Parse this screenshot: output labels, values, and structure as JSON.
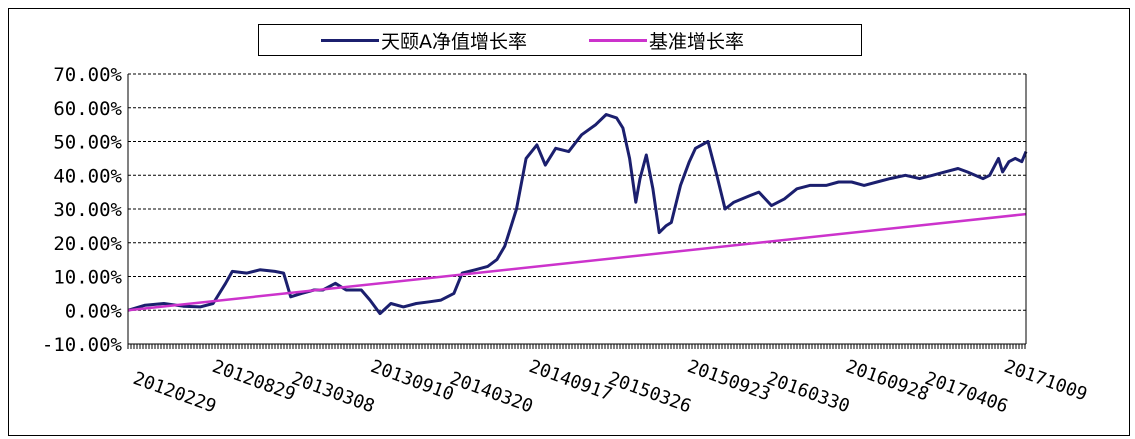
{
  "chart_data": {
    "type": "line",
    "title": "",
    "xlabel": "",
    "ylabel": "",
    "ylim": [
      -0.1,
      0.7
    ],
    "yticks": [
      -0.1,
      0.0,
      0.1,
      0.2,
      0.3,
      0.4,
      0.5,
      0.6,
      0.7
    ],
    "ytick_labels": [
      "-10.00%",
      "0.00%",
      "10.00%",
      "20.00%",
      "30.00%",
      "40.00%",
      "50.00%",
      "60.00%",
      "70.00%"
    ],
    "x_tick_labels": [
      "20120229",
      "20120829",
      "20130308",
      "20130910",
      "20140320",
      "20140917",
      "20150326",
      "20150923",
      "20160330",
      "20160928",
      "20170406",
      "20171009"
    ],
    "xlim": [
      "2012-02-29",
      "2018-01-20"
    ],
    "grid": "horizontal-dashed",
    "legend_position": "top",
    "series": [
      {
        "name": "天颐A净值增长率",
        "color": "#1b1f6e",
        "points": [
          [
            "2012-02-29",
            0.0
          ],
          [
            "2012-04-10",
            0.015
          ],
          [
            "2012-05-25",
            0.02
          ],
          [
            "2012-07-10",
            0.012
          ],
          [
            "2012-08-20",
            0.01
          ],
          [
            "2012-09-20",
            0.02
          ],
          [
            "2012-10-20",
            0.08
          ],
          [
            "2012-11-05",
            0.115
          ],
          [
            "2012-12-10",
            0.11
          ],
          [
            "2013-01-10",
            0.12
          ],
          [
            "2013-02-15",
            0.115
          ],
          [
            "2013-03-08",
            0.11
          ],
          [
            "2013-03-25",
            0.04
          ],
          [
            "2013-04-20",
            0.05
          ],
          [
            "2013-05-20",
            0.06
          ],
          [
            "2013-06-10",
            0.06
          ],
          [
            "2013-07-10",
            0.08
          ],
          [
            "2013-08-05",
            0.06
          ],
          [
            "2013-09-10",
            0.06
          ],
          [
            "2013-10-01",
            0.03
          ],
          [
            "2013-10-25",
            -0.01
          ],
          [
            "2013-11-20",
            0.02
          ],
          [
            "2013-12-20",
            0.01
          ],
          [
            "2014-01-20",
            0.02
          ],
          [
            "2014-02-20",
            0.025
          ],
          [
            "2014-03-20",
            0.03
          ],
          [
            "2014-04-20",
            0.05
          ],
          [
            "2014-05-10",
            0.11
          ],
          [
            "2014-06-10",
            0.12
          ],
          [
            "2014-07-10",
            0.13
          ],
          [
            "2014-08-01",
            0.15
          ],
          [
            "2014-08-20",
            0.19
          ],
          [
            "2014-09-17",
            0.3
          ],
          [
            "2014-10-10",
            0.45
          ],
          [
            "2014-11-05",
            0.49
          ],
          [
            "2014-11-25",
            0.43
          ],
          [
            "2014-12-20",
            0.48
          ],
          [
            "2015-01-20",
            0.47
          ],
          [
            "2015-02-20",
            0.52
          ],
          [
            "2015-03-26",
            0.55
          ],
          [
            "2015-04-20",
            0.58
          ],
          [
            "2015-05-15",
            0.57
          ],
          [
            "2015-05-30",
            0.54
          ],
          [
            "2015-06-15",
            0.45
          ],
          [
            "2015-06-30",
            0.32
          ],
          [
            "2015-07-10",
            0.39
          ],
          [
            "2015-07-25",
            0.46
          ],
          [
            "2015-08-10",
            0.36
          ],
          [
            "2015-08-25",
            0.23
          ],
          [
            "2015-09-10",
            0.25
          ],
          [
            "2015-09-23",
            0.26
          ],
          [
            "2015-10-15",
            0.37
          ],
          [
            "2015-11-05",
            0.44
          ],
          [
            "2015-11-20",
            0.48
          ],
          [
            "2015-12-20",
            0.5
          ],
          [
            "2016-01-10",
            0.4
          ],
          [
            "2016-01-30",
            0.3
          ],
          [
            "2016-02-20",
            0.32
          ],
          [
            "2016-03-30",
            0.34
          ],
          [
            "2016-04-20",
            0.35
          ],
          [
            "2016-05-20",
            0.31
          ],
          [
            "2016-06-20",
            0.33
          ],
          [
            "2016-07-20",
            0.36
          ],
          [
            "2016-08-20",
            0.37
          ],
          [
            "2016-09-28",
            0.37
          ],
          [
            "2016-10-28",
            0.38
          ],
          [
            "2016-11-28",
            0.38
          ],
          [
            "2016-12-28",
            0.37
          ],
          [
            "2017-01-28",
            0.38
          ],
          [
            "2017-02-28",
            0.39
          ],
          [
            "2017-04-06",
            0.4
          ],
          [
            "2017-05-10",
            0.39
          ],
          [
            "2017-06-10",
            0.4
          ],
          [
            "2017-07-10",
            0.41
          ],
          [
            "2017-08-10",
            0.42
          ],
          [
            "2017-09-01",
            0.41
          ],
          [
            "2017-09-20",
            0.4
          ],
          [
            "2017-10-09",
            0.39
          ],
          [
            "2017-10-25",
            0.4
          ],
          [
            "2017-11-15",
            0.45
          ],
          [
            "2017-11-25",
            0.41
          ],
          [
            "2017-12-10",
            0.44
          ],
          [
            "2017-12-25",
            0.45
          ],
          [
            "2018-01-10",
            0.44
          ],
          [
            "2018-01-20",
            0.47
          ]
        ]
      },
      {
        "name": "基准增长率",
        "color": "#cc33cc",
        "points": [
          [
            "2012-02-29",
            0.0
          ],
          [
            "2018-01-20",
            0.285
          ]
        ]
      }
    ]
  }
}
